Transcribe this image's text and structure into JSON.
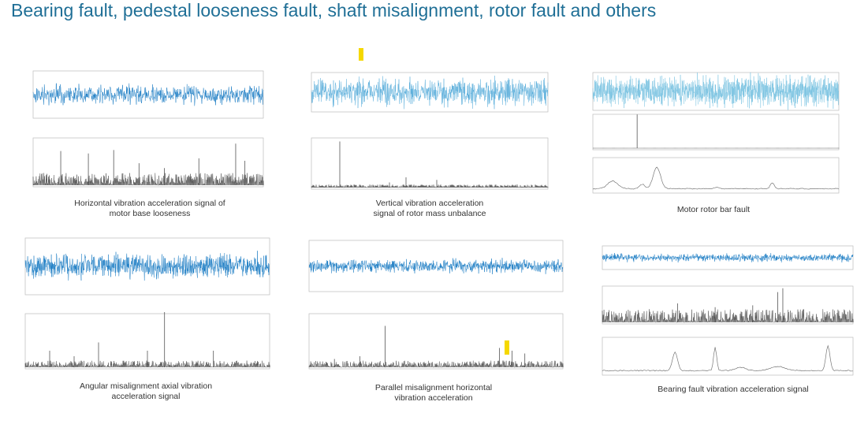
{
  "header": {
    "title": "Bearing fault, pedestal looseness fault, shaft misalignment, rotor fault and others"
  },
  "panels": [
    {
      "caption": "Horizontal vibration acceleration signal of\nmotor base looseness"
    },
    {
      "caption": "Vertical vibration acceleration\nsignal of rotor mass unbalance"
    },
    {
      "caption": "Motor rotor bar fault"
    },
    {
      "caption": "Angular misalignment axial vibration\nacceleration signal"
    },
    {
      "caption": "Parallel misalignment horizontal\nvibration acceleration"
    },
    {
      "caption": "Bearing fault vibration acceleration signal"
    }
  ]
}
